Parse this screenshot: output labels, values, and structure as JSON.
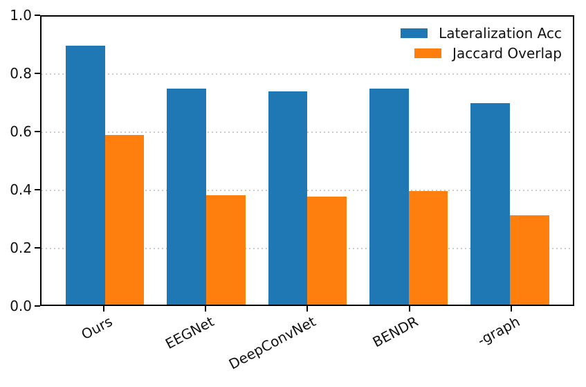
{
  "figure": {
    "background": "#ffffff"
  },
  "chart_data": {
    "type": "bar",
    "categories": [
      "Ours",
      "EEGNet",
      "DeepConvNet",
      "BENDR",
      "-graph"
    ],
    "series": [
      {
        "name": "Lateralization Acc",
        "color": "#1f77b4",
        "values": [
          0.9,
          0.75,
          0.74,
          0.75,
          0.7
        ]
      },
      {
        "name": "Jaccard Overlap",
        "color": "#ff7f0e",
        "values": [
          0.59,
          0.38,
          0.375,
          0.395,
          0.31
        ]
      }
    ],
    "title": "",
    "xlabel": "",
    "ylabel": "",
    "ylim": [
      0.0,
      1.0
    ],
    "yticks": [
      0.0,
      0.2,
      0.4,
      0.6,
      0.8,
      1.0
    ],
    "ytick_labels": [
      "0.0",
      "0.2",
      "0.4",
      "0.6",
      "0.8",
      "1.0"
    ],
    "grid": "horizontal-dotted",
    "grid_color": "#cccccc",
    "axis_color": "#000000",
    "text_color": "#111111",
    "x_tick_rotation_deg": 28,
    "legend_position": "upper right"
  }
}
